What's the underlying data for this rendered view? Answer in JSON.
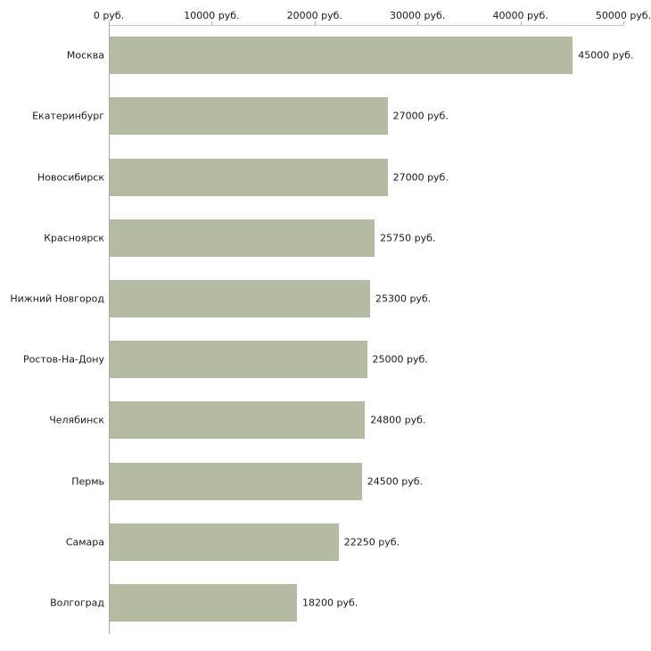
{
  "chart_data": {
    "type": "bar",
    "orientation": "horizontal",
    "title": "",
    "xlabel": "",
    "ylabel": "",
    "grid": false,
    "legend": false,
    "bar_color": "#b4bba2",
    "categories": [
      "Москва",
      "Екатеринбург",
      "Новосибирск",
      "Красноярск",
      "Нижний Новгород",
      "Ростов-На-Дону",
      "Челябинск",
      "Пермь",
      "Самара",
      "Волгоград"
    ],
    "values": [
      45000,
      27000,
      27000,
      25750,
      25300,
      25000,
      24800,
      24500,
      22250,
      18200
    ],
    "value_labels": [
      "45000 руб.",
      "27000 руб.",
      "27000 руб.",
      "25750 руб.",
      "25300 руб.",
      "25000 руб.",
      "24800 руб.",
      "24500 руб.",
      "22250 руб.",
      "18200 руб."
    ],
    "x_axis": {
      "position": "top",
      "max": 50000,
      "ticks": [
        0,
        10000,
        20000,
        30000,
        40000,
        50000
      ],
      "tick_labels": [
        "0 руб.",
        "10000 руб.",
        "20000 руб.",
        "30000 руб.",
        "40000 руб.",
        "50000 руб."
      ]
    }
  }
}
